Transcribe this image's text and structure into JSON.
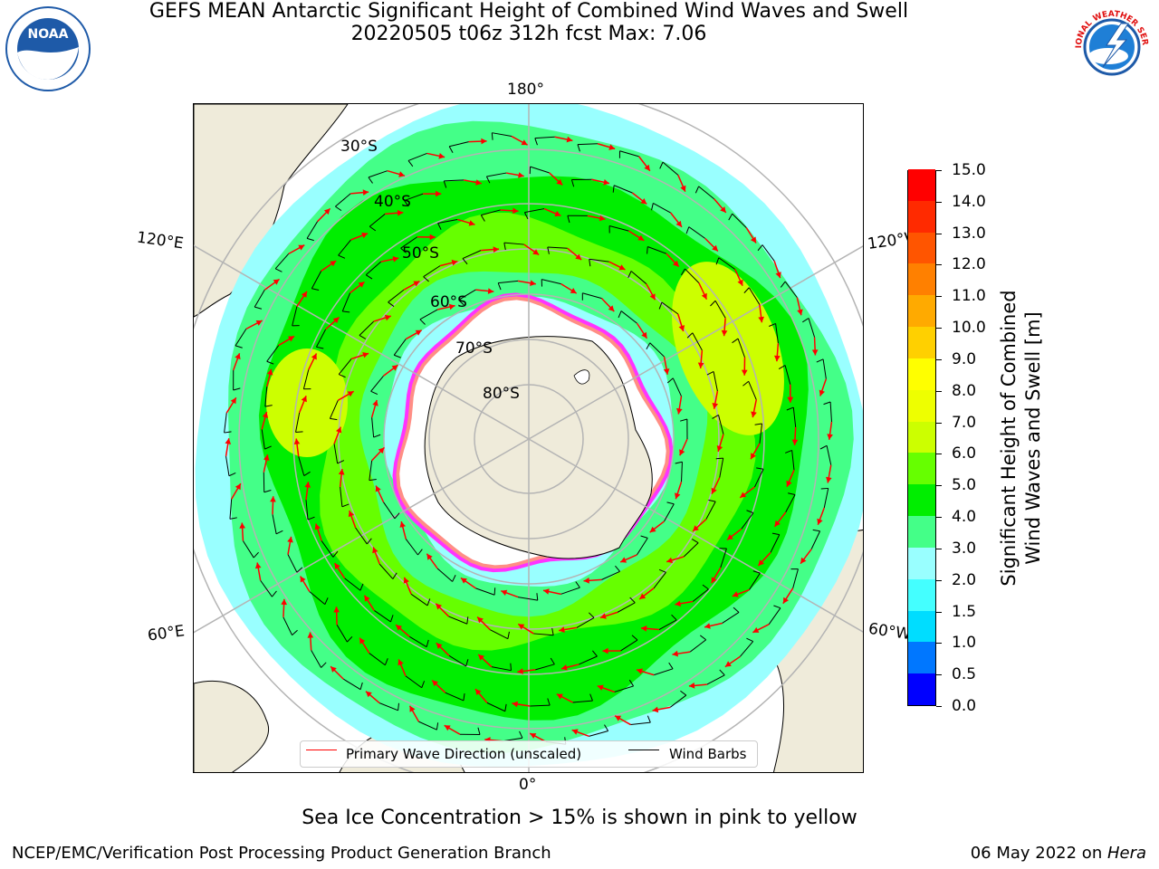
{
  "header": {
    "title_line1": "GEFS MEAN Antarctic Significant Height of Combined Wind Waves and Swell",
    "title_line2": "20220505 t06z 312h fcst   Max: 7.06"
  },
  "logos": {
    "left": {
      "icon": "noaa-logo",
      "text": "NOAA",
      "ring_text": "NATIONAL OCEANIC AND ATMOSPHERIC ADMINISTRATION"
    },
    "right": {
      "icon": "nws-logo",
      "ring_text": "NATIONAL WEATHER SERVICE"
    }
  },
  "map": {
    "projection": "south-polar-stereographic",
    "longitude_labels": {
      "top": "180°",
      "bottom": "0°",
      "upper_left": "120°E",
      "upper_right": "120°W",
      "lower_left": "60°E",
      "lower_right": "60°W"
    },
    "latitude_labels": [
      "30°S",
      "40°S",
      "50°S",
      "60°S",
      "70°S",
      "80°S"
    ],
    "colors": {
      "land": "#efebda",
      "ice_shelf": "#ffffff",
      "sea_ice": "#ff33ff",
      "sea_ice_edge": "#ffcc33",
      "wave_arrow": "#ff0000",
      "wind_barb": "#000000",
      "graticule": "#b4b4b4"
    }
  },
  "legend": {
    "wave_label": "Primary Wave Direction (unscaled)",
    "wind_label": "Wind Barbs",
    "wave_color": "#ff0000",
    "wind_color": "#000000"
  },
  "colorbar": {
    "title_line1": "Significant Height of Combined",
    "title_line2": "Wind Waves and Swell [m]",
    "ticks": [
      "0.0",
      "0.5",
      "1.0",
      "1.5",
      "2.0",
      "3.0",
      "4.0",
      "5.0",
      "6.0",
      "7.0",
      "8.0",
      "9.0",
      "10.0",
      "11.0",
      "12.0",
      "13.0",
      "14.0",
      "15.0"
    ],
    "colors": [
      "#0000ff",
      "#0077ff",
      "#00ddff",
      "#44ffff",
      "#99ffff",
      "#44ff88",
      "#00ee00",
      "#66ff00",
      "#ccff00",
      "#eeff00",
      "#ffff00",
      "#ffd000",
      "#ffaa00",
      "#ff8000",
      "#ff5500",
      "#ff2a00",
      "#ff0000"
    ]
  },
  "subtitle": "Sea Ice Concentration > 15% is shown in pink to yellow",
  "footer": {
    "left": "NCEP/EMC/Verification Post Processing Product Generation Branch",
    "right_date": "06 May 2022 on ",
    "right_host": "Hera"
  }
}
